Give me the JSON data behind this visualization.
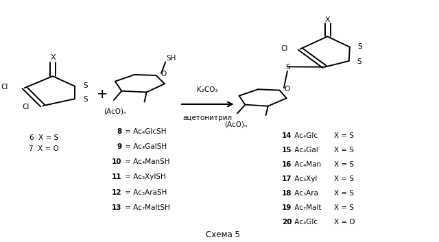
{
  "background_color": "#ffffff",
  "figure_width": 6.4,
  "figure_height": 3.53,
  "dpi": 100,
  "caption": "Схема 5",
  "reagent_labels": [
    [
      "8",
      " = Ac₄GlcSH"
    ],
    [
      "9",
      " = Ac₄GalSH"
    ],
    [
      "10",
      " = Ac₄ManSH"
    ],
    [
      "11",
      " = Ac₃XylSH"
    ],
    [
      "12",
      " = Ac₃AraSH"
    ],
    [
      "13",
      " = Ac₇MaltSH"
    ]
  ],
  "product_labels": [
    [
      "14",
      " Ac₄Glc",
      "  X = S"
    ],
    [
      "15",
      " Ac₄Gal",
      "  X = S"
    ],
    [
      "16",
      " Ac₄Man",
      "  X = S"
    ],
    [
      "17",
      " Ac₃Xyl",
      "  X = S"
    ],
    [
      "18",
      " Ac₃Ara",
      "  X = S"
    ],
    [
      "19",
      " Ac₇Malt",
      "  X = S"
    ],
    [
      "20",
      " Ac₄Glc",
      "  X = O"
    ]
  ],
  "reaction_conditions": [
    "K₂CO₃",
    "ацетонитрил"
  ]
}
